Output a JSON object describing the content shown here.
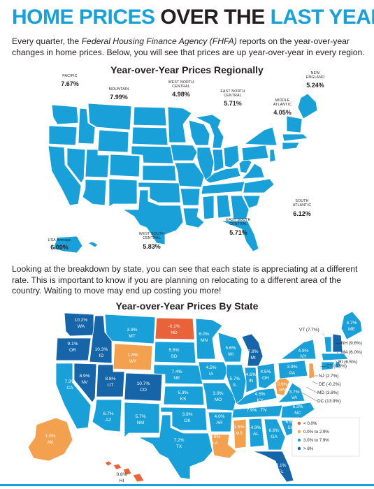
{
  "header": {
    "title_part1": "HOME PRICES",
    "title_part2": "OVER THE",
    "title_part3": "LAST YEAR"
  },
  "intro": {
    "text_before": "Every quarter, the ",
    "agency": "Federal Housing Finance Agency (FHFA)",
    "text_after": " reports on the year-over-year changes in home prices. Below, you will see that prices are up year-over-year in every region."
  },
  "regional_map": {
    "title": "Year-over-Year Prices Regionally",
    "fill_color": "#1aa0d8",
    "regions": [
      {
        "name": "PACIFIC",
        "value": "7.67%"
      },
      {
        "name": "MOUNTAIN",
        "value": "7.99%"
      },
      {
        "name": "WEST NORTH CENTRAL",
        "value": "4.98%"
      },
      {
        "name": "EAST NORTH CENTRAL",
        "value": "5.71%"
      },
      {
        "name": "MIDDLE ATLANTIC",
        "value": "4.05%"
      },
      {
        "name": "NEW ENGLAND",
        "value": "5.24%"
      },
      {
        "name": "SOUTH ATLANTIC",
        "value": "6.12%"
      },
      {
        "name": "EAST SOUTH CENTRAL",
        "value": "5.71%"
      },
      {
        "name": "WEST SOUTH CENTRAL",
        "value": "5.83%"
      },
      {
        "name": "USA Average",
        "value": "6.00%"
      }
    ]
  },
  "mid_text": "Looking at the breakdown by state, you can see that each state is appreciating at a different rate. This is important to know if you are planning on relocating to a different area of the country. Waiting to move may end up costing you more!",
  "state_map": {
    "title": "Year-over-Year Prices By State",
    "colors": {
      "negative": "#e8623a",
      "low": "#f4a14f",
      "mid": "#1aa0d8",
      "high": "#1565a8"
    },
    "states": [
      {
        "abbr": "WA",
        "value": "10.2%"
      },
      {
        "abbr": "OR",
        "value": "9.1%"
      },
      {
        "abbr": "CA",
        "value": "7.3%"
      },
      {
        "abbr": "ID",
        "value": "10.3%"
      },
      {
        "abbr": "NV",
        "value": "8.9%"
      },
      {
        "abbr": "MT",
        "value": "3.9%"
      },
      {
        "abbr": "WY",
        "value": "1.8%"
      },
      {
        "abbr": "UT",
        "value": "8.8%"
      },
      {
        "abbr": "AZ",
        "value": "6.7%"
      },
      {
        "abbr": "CO",
        "value": "10.7%"
      },
      {
        "abbr": "NM",
        "value": "5.7%"
      },
      {
        "abbr": "ND",
        "value": "-0.1%"
      },
      {
        "abbr": "SD",
        "value": "5.6%"
      },
      {
        "abbr": "NE",
        "value": "7.4%"
      },
      {
        "abbr": "KS",
        "value": "5.3%"
      },
      {
        "abbr": "OK",
        "value": "3.9%"
      },
      {
        "abbr": "TX",
        "value": "7.2%"
      },
      {
        "abbr": "MN",
        "value": "6.0%"
      },
      {
        "abbr": "IA",
        "value": "4.5%"
      },
      {
        "abbr": "MO",
        "value": "3.9%"
      },
      {
        "abbr": "AR",
        "value": "4.0%"
      },
      {
        "abbr": "LA",
        "value": "3.6%"
      },
      {
        "abbr": "WI",
        "value": "5.6%"
      },
      {
        "abbr": "IL",
        "value": "5.7%"
      },
      {
        "abbr": "MS",
        "value": "1.5%"
      },
      {
        "abbr": "MI",
        "value": "7.8%"
      },
      {
        "abbr": "IN",
        "value": "4.6%"
      },
      {
        "abbr": "KY",
        "value": "4.5%"
      },
      {
        "abbr": "TN",
        "value": "7.9%"
      },
      {
        "abbr": "AL",
        "value": "4.9%"
      },
      {
        "abbr": "OH",
        "value": "4.5%"
      },
      {
        "abbr": "WV",
        "value": "0.9%"
      },
      {
        "abbr": "VA",
        "value": "3.7%"
      },
      {
        "abbr": "NC",
        "value": "6.3%"
      },
      {
        "abbr": "SC",
        "value": "6.6%"
      },
      {
        "abbr": "GA",
        "value": "6.6%"
      },
      {
        "abbr": "FL",
        "value": "9.1%"
      },
      {
        "abbr": "PA",
        "value": "3.9%"
      },
      {
        "abbr": "NY",
        "value": "4.9%"
      },
      {
        "abbr": "ME",
        "value": "4.7%"
      },
      {
        "abbr": "AK",
        "value": "1.0%"
      },
      {
        "abbr": "HI",
        "value": "0.8%"
      }
    ],
    "callouts": [
      {
        "label": "VT (7.7%)"
      },
      {
        "label": "NH (9.6%)"
      },
      {
        "label": "MA (6.0%)"
      },
      {
        "label": "RI (6.5%)"
      },
      {
        "label": "CT (0.5%)"
      },
      {
        "label": "NJ (2.7%)"
      },
      {
        "label": "DE (-0.2%)"
      },
      {
        "label": "MD (3.8%)"
      },
      {
        "label": "DC (13.9%)"
      }
    ],
    "legend": [
      {
        "label": "< 0.0%",
        "color": "#e8623a"
      },
      {
        "label": "0.0% to 2.9%",
        "color": "#f4a14f"
      },
      {
        "label": "3.0% to 7.9%",
        "color": "#1aa0d8"
      },
      {
        "label": "> 8%",
        "color": "#1565a8"
      }
    ]
  }
}
